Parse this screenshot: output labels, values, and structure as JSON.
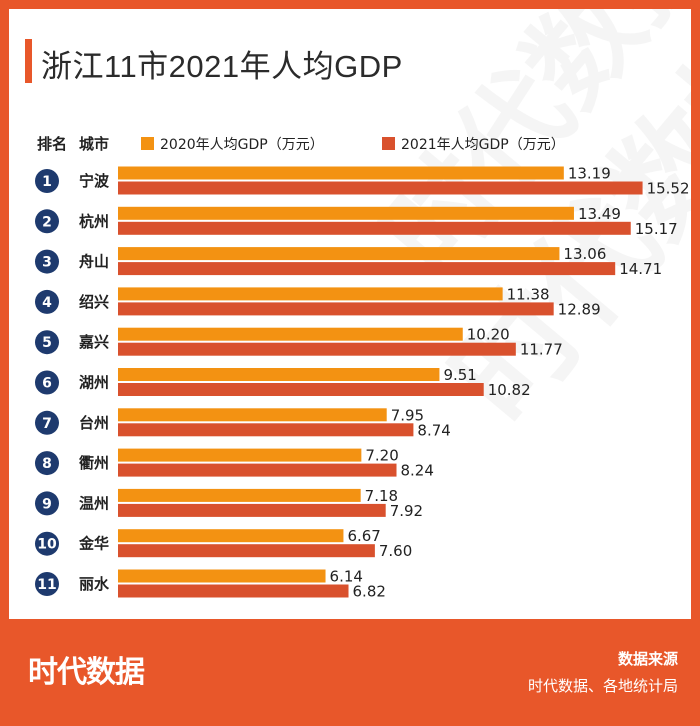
{
  "title": "浙江11市2021年人均GDP",
  "header": {
    "rank_label": "排名",
    "city_label": "城市"
  },
  "colors": {
    "accent": "#e8572a",
    "series_2020": "#f39212",
    "series_2021": "#d9512d",
    "rank_badge": "#1e3a6e"
  },
  "chart_data": {
    "type": "bar",
    "orientation": "horizontal",
    "title": "浙江11市2021年人均GDP",
    "categories": [
      "宁波",
      "杭州",
      "舟山",
      "绍兴",
      "嘉兴",
      "湖州",
      "台州",
      "衢州",
      "温州",
      "金华",
      "丽水"
    ],
    "ranks": [
      "1",
      "2",
      "3",
      "4",
      "5",
      "6",
      "7",
      "8",
      "9",
      "10",
      "11"
    ],
    "series": [
      {
        "name": "2020年人均GDP（万元）",
        "values": [
          13.19,
          13.49,
          13.06,
          11.38,
          10.2,
          9.51,
          7.95,
          7.2,
          7.18,
          6.67,
          6.14
        ],
        "labels": [
          "13.19",
          "13.49",
          "13.06",
          "11.38",
          "10.20",
          "9.51",
          "7.95",
          "7.20",
          "7.18",
          "6.67",
          "6.14"
        ]
      },
      {
        "name": "2021年人均GDP（万元）",
        "values": [
          15.52,
          15.17,
          14.71,
          12.89,
          11.77,
          10.82,
          8.74,
          8.24,
          7.92,
          7.6,
          6.82
        ],
        "labels": [
          "15.52",
          "15.17",
          "14.71",
          "12.89",
          "11.77",
          "10.82",
          "8.74",
          "8.24",
          "7.92",
          "7.60",
          "6.82"
        ]
      }
    ],
    "xlim": [
      0,
      16
    ],
    "grid": false,
    "legend": "top"
  },
  "footer": {
    "logo": "时代数据",
    "source_title": "数据来源",
    "source_text": "时代数据、各地统计局"
  }
}
